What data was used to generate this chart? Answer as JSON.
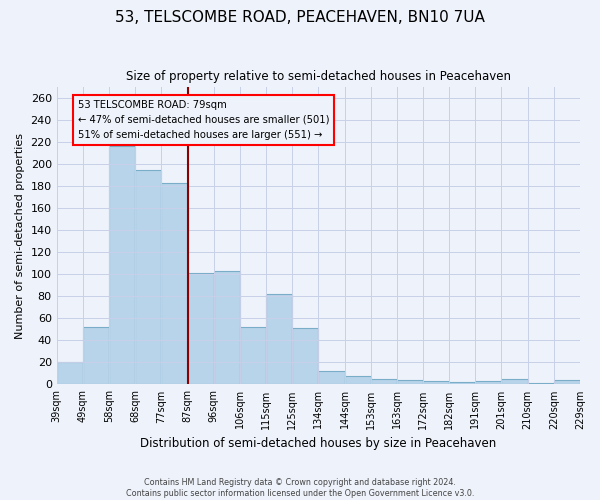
{
  "title": "53, TELSCOMBE ROAD, PEACEHAVEN, BN10 7UA",
  "subtitle": "Size of property relative to semi-detached houses in Peacehaven",
  "xlabel": "Distribution of semi-detached houses by size in Peacehaven",
  "ylabel": "Number of semi-detached properties",
  "footer_line1": "Contains HM Land Registry data © Crown copyright and database right 2024.",
  "footer_line2": "Contains public sector information licensed under the Open Government Licence v3.0.",
  "bin_labels": [
    "39sqm",
    "49sqm",
    "58sqm",
    "68sqm",
    "77sqm",
    "87sqm",
    "96sqm",
    "106sqm",
    "115sqm",
    "125sqm",
    "134sqm",
    "144sqm",
    "153sqm",
    "163sqm",
    "172sqm",
    "182sqm",
    "191sqm",
    "201sqm",
    "210sqm",
    "220sqm",
    "229sqm"
  ],
  "values": [
    20,
    52,
    216,
    195,
    183,
    101,
    103,
    52,
    82,
    51,
    12,
    8,
    5,
    4,
    3,
    2,
    3,
    5,
    1,
    4
  ],
  "bar_color": "#b8d4ea",
  "vline_color": "#8b0000",
  "vline_position": 4.5,
  "annotation_title": "53 TELSCOMBE ROAD: 79sqm",
  "annotation_line2": "← 47% of semi-detached houses are smaller (501)",
  "annotation_line3": "51% of semi-detached houses are larger (551) →",
  "ylim": [
    0,
    270
  ],
  "yticks": [
    0,
    20,
    40,
    60,
    80,
    100,
    120,
    140,
    160,
    180,
    200,
    220,
    240,
    260
  ],
  "background_color": "#eef2fa",
  "grid_color": "#c8d0e8",
  "bar_edge_color": "#7aaec8"
}
